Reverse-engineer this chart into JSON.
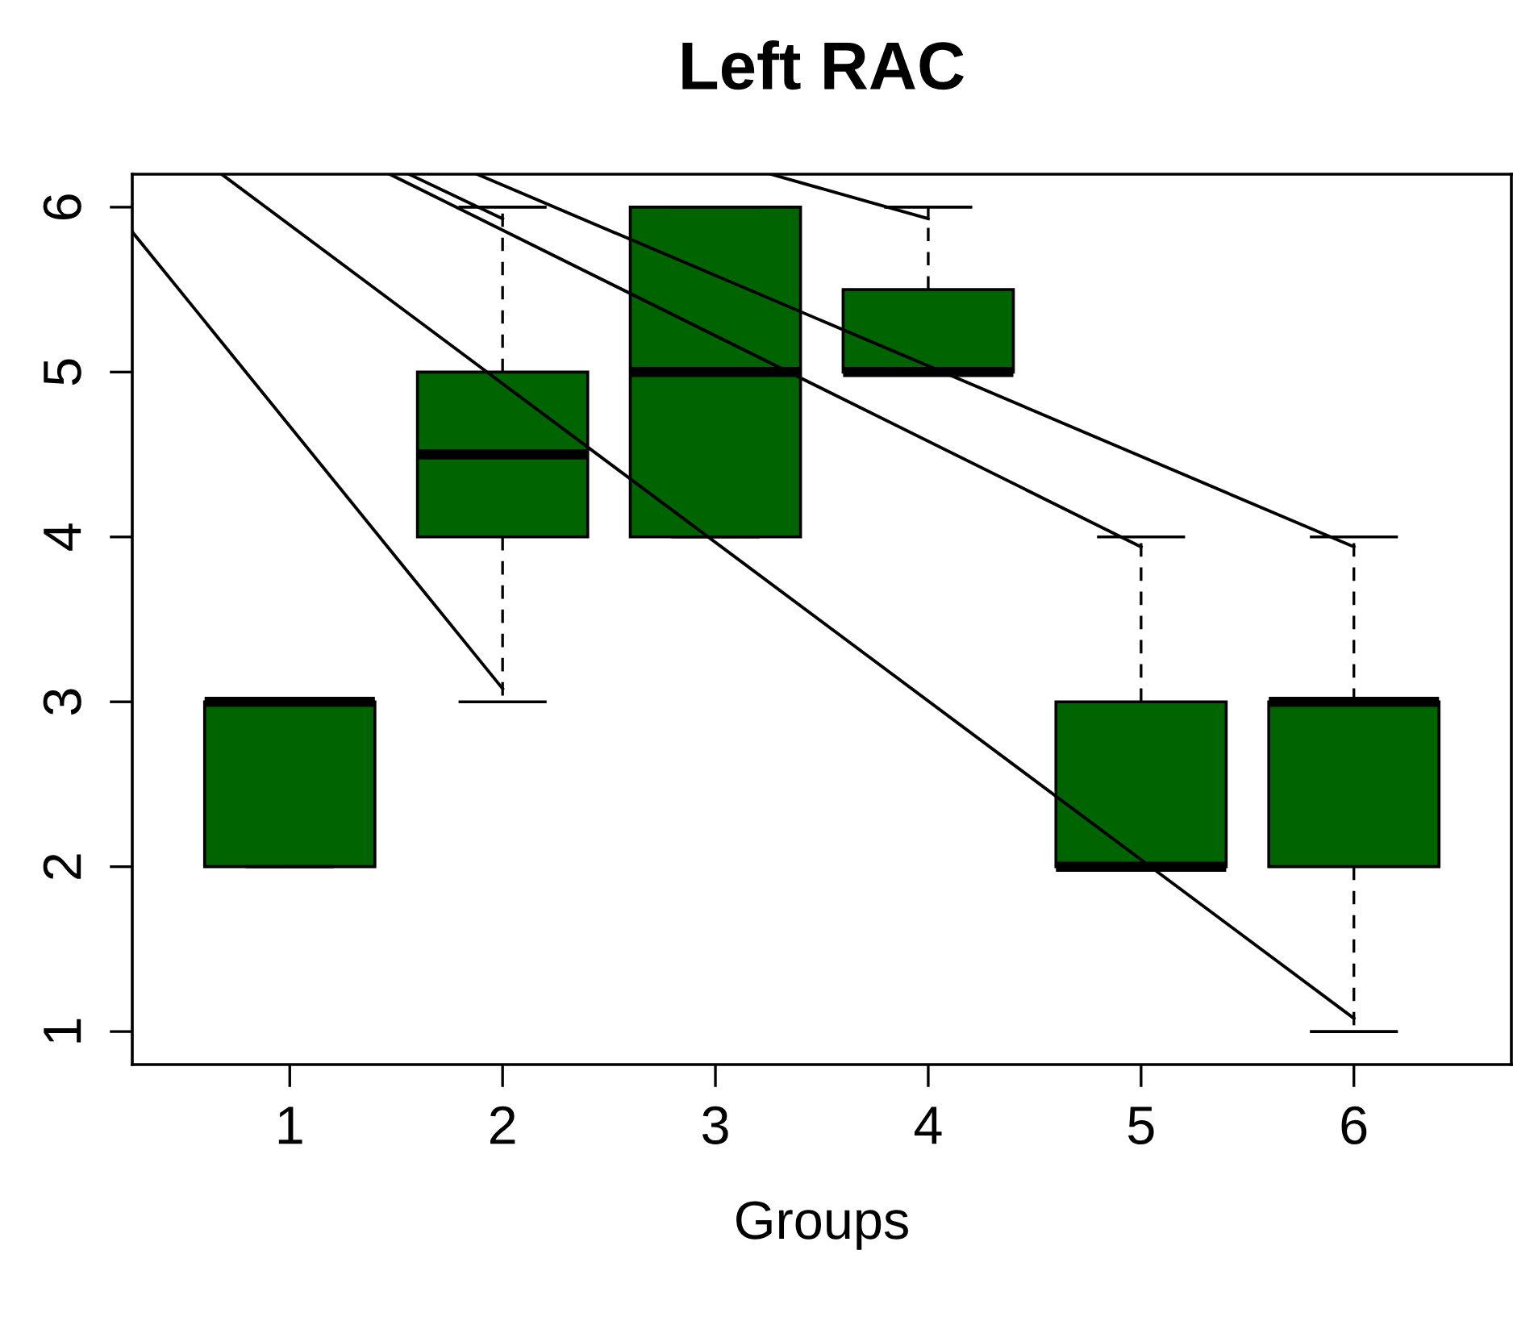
{
  "chart_data": {
    "type": "box",
    "title": "Left RAC",
    "xlabel": "Groups",
    "x": [
      1,
      2,
      3,
      4,
      5,
      6
    ],
    "xlim": [
      0.26,
      6.74
    ],
    "xticks": [
      1,
      2,
      3,
      4,
      5,
      6
    ],
    "ylim": [
      0.8,
      6.2
    ],
    "yticks": [
      1,
      2,
      3,
      4,
      5,
      6
    ],
    "grid": false,
    "series": [
      {
        "color": "#006400",
        "boxes": [
          {
            "low": 2,
            "q1": 2,
            "median": 3,
            "q3": 3,
            "high": 3
          },
          {
            "low": 3,
            "q1": 4,
            "median": 4.5,
            "q3": 5,
            "high": 6
          },
          {
            "low": 4,
            "q1": 4,
            "median": 5,
            "q3": 6,
            "high": 6
          },
          {
            "low": 5,
            "q1": 5,
            "median": 5,
            "q3": 5.5,
            "high": 6
          },
          {
            "low": 2,
            "q1": 2,
            "median": 2,
            "q3": 3,
            "high": 4
          },
          {
            "low": 1,
            "q1": 2,
            "median": 3,
            "q3": 3,
            "high": 4
          }
        ]
      },
      {
        "type": "line",
        "color": "#000000",
        "x": [
          0.26,
          2.0
        ],
        "values": [
          5.85,
          3.08
        ]
      },
      {
        "type": "line",
        "color": "#000000",
        "x": [
          0.68,
          6.0
        ],
        "values": [
          6.2,
          1.08
        ]
      },
      {
        "type": "line",
        "color": "#000000",
        "x": [
          1.47,
          5.0
        ],
        "values": [
          6.2,
          3.94
        ]
      },
      {
        "type": "line",
        "color": "#000000",
        "x": [
          1.56,
          2.0
        ],
        "values": [
          6.2,
          5.93
        ]
      },
      {
        "type": "line",
        "color": "#000000",
        "x": [
          1.88,
          6.0
        ],
        "values": [
          6.2,
          3.94
        ]
      },
      {
        "type": "line",
        "color": "#000000",
        "x": [
          3.26,
          4.0
        ],
        "values": [
          6.2,
          5.93
        ]
      }
    ]
  }
}
